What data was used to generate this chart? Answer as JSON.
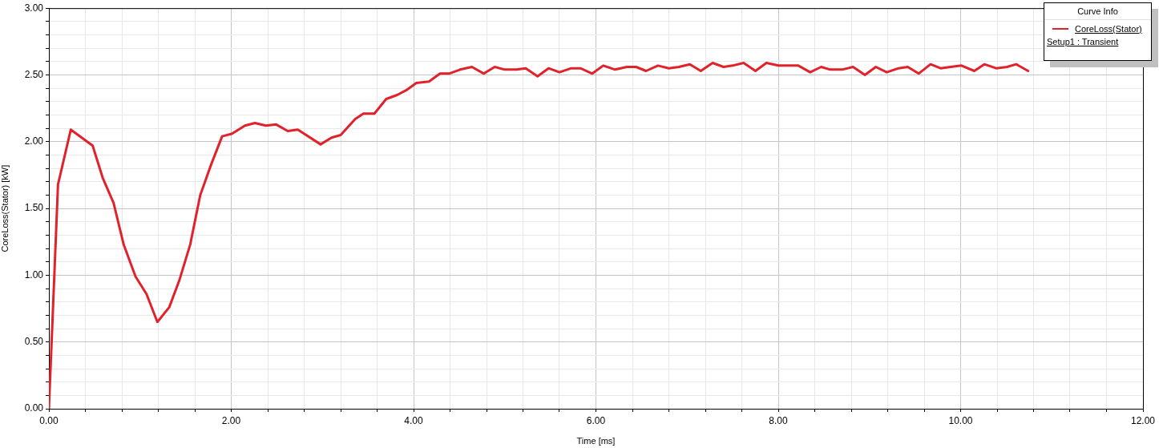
{
  "chart_data": {
    "type": "line",
    "xlabel": "Time [ms]",
    "ylabel": "CoreLoss(Stator) [kW]",
    "legend_title": "Curve Info",
    "legend": "top right",
    "annotations": [
      "Setup1 : Transient"
    ],
    "x": [
      0,
      0.03,
      0.1,
      0.24,
      0.36,
      0.48,
      0.59,
      0.71,
      0.82,
      0.95,
      1.07,
      1.19,
      1.32,
      1.43,
      1.55,
      1.66,
      1.78,
      1.9,
      2.01,
      2.15,
      2.26,
      2.38,
      2.49,
      2.62,
      2.73,
      2.98,
      3.1,
      3.2,
      3.36,
      3.45,
      3.57,
      3.7,
      3.82,
      3.93,
      4.03,
      4.17,
      4.29,
      4.39,
      4.51,
      4.64,
      4.77,
      4.89,
      5.0,
      5.13,
      5.23,
      5.36,
      5.48,
      5.6,
      5.73,
      5.83,
      5.96,
      6.08,
      6.21,
      6.34,
      6.44,
      6.55,
      6.68,
      6.8,
      6.91,
      7.03,
      7.15,
      7.28,
      7.4,
      7.5,
      7.62,
      7.75,
      7.87,
      8.0,
      8.22,
      8.35,
      8.47,
      8.57,
      8.7,
      8.82,
      8.95,
      9.07,
      9.19,
      9.32,
      9.42,
      9.54,
      9.67,
      9.78,
      9.89,
      10.01,
      10.15,
      10.26,
      10.39,
      10.51,
      10.61,
      10.74
    ],
    "series": [
      {
        "name": "CoreLoss(Stator)",
        "color": "#e1222b",
        "values": [
          0,
          0.5,
          1.68,
          2.09,
          2.03,
          1.97,
          1.73,
          1.54,
          1.23,
          0.99,
          0.86,
          0.65,
          0.76,
          0.96,
          1.23,
          1.6,
          1.83,
          2.04,
          2.06,
          2.12,
          2.14,
          2.12,
          2.13,
          2.08,
          2.09,
          1.98,
          2.03,
          2.05,
          2.17,
          2.21,
          2.21,
          2.32,
          2.35,
          2.39,
          2.44,
          2.45,
          2.51,
          2.51,
          2.54,
          2.56,
          2.51,
          2.56,
          2.54,
          2.54,
          2.55,
          2.49,
          2.55,
          2.52,
          2.55,
          2.55,
          2.51,
          2.57,
          2.54,
          2.56,
          2.56,
          2.53,
          2.57,
          2.55,
          2.56,
          2.58,
          2.53,
          2.59,
          2.56,
          2.57,
          2.59,
          2.53,
          2.59,
          2.57,
          2.57,
          2.52,
          2.56,
          2.54,
          2.54,
          2.56,
          2.5,
          2.56,
          2.52,
          2.55,
          2.56,
          2.51,
          2.58,
          2.55,
          2.56,
          2.57,
          2.53,
          2.58,
          2.55,
          2.56,
          2.58,
          2.53
        ]
      }
    ],
    "xlim": [
      0,
      12
    ],
    "ylim": [
      0,
      3
    ],
    "xticks": [
      {
        "value": 0,
        "label": "0.00"
      },
      {
        "value": 0.4,
        "label": null
      },
      {
        "value": 0.8,
        "label": null
      },
      {
        "value": 1.2,
        "label": null
      },
      {
        "value": 1.6,
        "label": null
      },
      {
        "value": 2,
        "label": "2.00"
      },
      {
        "value": 2.4,
        "label": null
      },
      {
        "value": 2.8,
        "label": null
      },
      {
        "value": 3.2,
        "label": null
      },
      {
        "value": 3.6,
        "label": null
      },
      {
        "value": 4,
        "label": "4.00"
      },
      {
        "value": 4.4,
        "label": null
      },
      {
        "value": 4.8,
        "label": null
      },
      {
        "value": 5.2,
        "label": null
      },
      {
        "value": 5.6,
        "label": null
      },
      {
        "value": 6,
        "label": "6.00"
      },
      {
        "value": 6.4,
        "label": null
      },
      {
        "value": 6.8,
        "label": null
      },
      {
        "value": 7.2,
        "label": null
      },
      {
        "value": 7.6,
        "label": null
      },
      {
        "value": 8,
        "label": "8.00"
      },
      {
        "value": 8.4,
        "label": null
      },
      {
        "value": 8.8,
        "label": null
      },
      {
        "value": 9.2,
        "label": null
      },
      {
        "value": 9.6,
        "label": null
      },
      {
        "value": 10,
        "label": "10.00"
      },
      {
        "value": 10.4,
        "label": null
      },
      {
        "value": 10.8,
        "label": null
      },
      {
        "value": 11.2,
        "label": null
      },
      {
        "value": 11.6,
        "label": null
      },
      {
        "value": 12,
        "label": "12.00"
      }
    ],
    "yticks": [
      {
        "value": 0,
        "label": "0.00"
      },
      {
        "value": 0.1,
        "label": null
      },
      {
        "value": 0.2,
        "label": null
      },
      {
        "value": 0.3,
        "label": null
      },
      {
        "value": 0.4,
        "label": null
      },
      {
        "value": 0.5,
        "label": "0.50"
      },
      {
        "value": 0.6,
        "label": null
      },
      {
        "value": 0.7,
        "label": null
      },
      {
        "value": 0.8,
        "label": null
      },
      {
        "value": 0.9,
        "label": null
      },
      {
        "value": 1,
        "label": "1.00"
      },
      {
        "value": 1.1,
        "label": null
      },
      {
        "value": 1.2,
        "label": null
      },
      {
        "value": 1.3,
        "label": null
      },
      {
        "value": 1.4,
        "label": null
      },
      {
        "value": 1.5,
        "label": "1.50"
      },
      {
        "value": 1.6,
        "label": null
      },
      {
        "value": 1.7,
        "label": null
      },
      {
        "value": 1.8,
        "label": null
      },
      {
        "value": 1.9,
        "label": null
      },
      {
        "value": 2,
        "label": "2.00"
      },
      {
        "value": 2.1,
        "label": null
      },
      {
        "value": 2.2,
        "label": null
      },
      {
        "value": 2.3,
        "label": null
      },
      {
        "value": 2.4,
        "label": null
      },
      {
        "value": 2.5,
        "label": "2.50"
      },
      {
        "value": 2.6,
        "label": null
      },
      {
        "value": 2.7,
        "label": null
      },
      {
        "value": 2.8,
        "label": null
      },
      {
        "value": 2.9,
        "label": null
      },
      {
        "value": 3,
        "label": "3.00"
      }
    ],
    "grid": true,
    "marker": "none",
    "line_style": "solid"
  }
}
